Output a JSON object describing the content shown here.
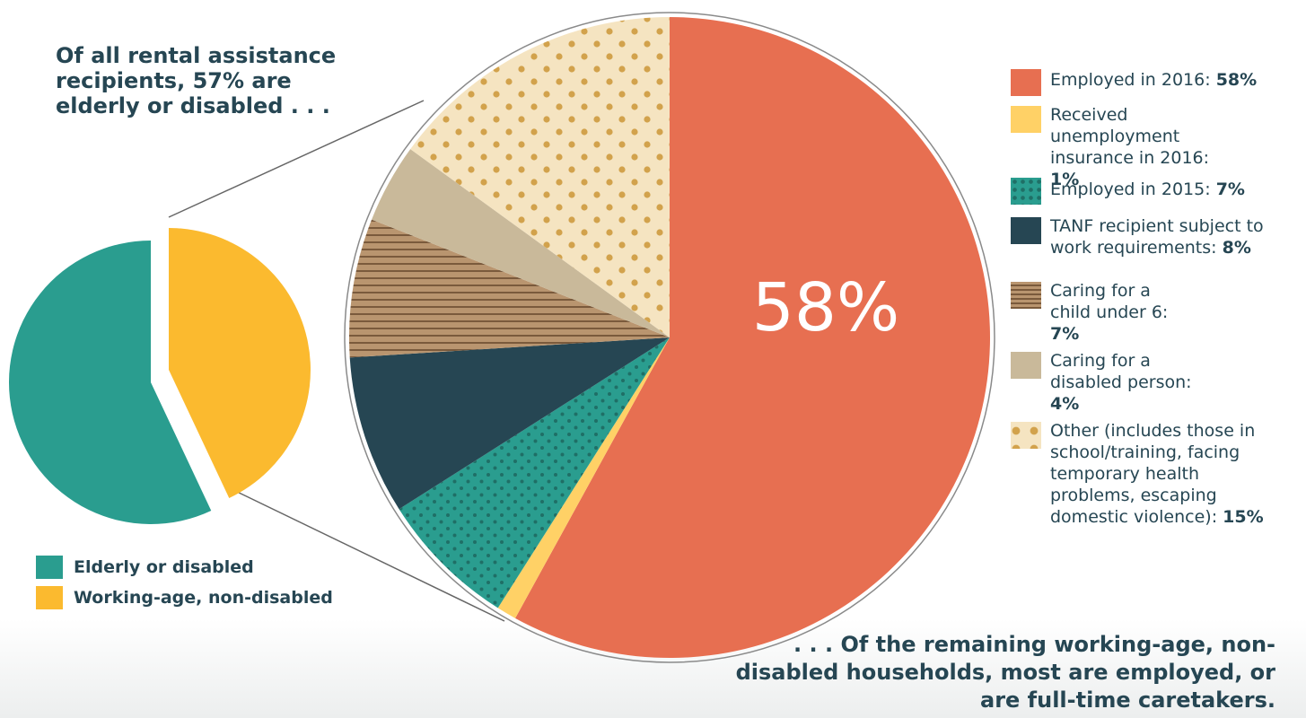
{
  "colors": {
    "elderly": "#2a9d8f",
    "working_age": "#fbba2f",
    "employed_2016": "#e76f51",
    "unemployment": "#ffd166",
    "employed_2015": "#2a9d8f",
    "tanf": "#264653",
    "child": "#b9956f",
    "disabled": "#c9b99a",
    "other": "#f5e4c1",
    "text": "#264653"
  },
  "chart_data": [
    {
      "type": "pie",
      "title": "",
      "slices": [
        {
          "label": "Elderly or disabled",
          "value": 57
        },
        {
          "label": "Working-age, non-disabled",
          "value": 43
        }
      ]
    },
    {
      "type": "pie",
      "title": "",
      "center_label": "58%",
      "slices": [
        {
          "label": "Employed in 2016:",
          "value": 58,
          "value_label": "58%"
        },
        {
          "label": "Received unemployment insurance in 2016:",
          "value": 1,
          "value_label": "1%"
        },
        {
          "label": "Employed in 2015:",
          "value": 7,
          "value_label": "7%"
        },
        {
          "label": "TANF recipient subject to work requirements:",
          "value": 8,
          "value_label": "8%"
        },
        {
          "label": "Caring for a child under 6:",
          "value": 7,
          "value_label": "7%"
        },
        {
          "label": "Caring for a disabled person:",
          "value": 4,
          "value_label": "4%"
        },
        {
          "label": "Other (includes those in school/training, facing temporary health problems, escaping domestic violence):",
          "value": 15,
          "value_label": "15%"
        }
      ]
    }
  ],
  "captions": {
    "left": "Of all rental assistance recipients, 57% are elderly or disabled . . .",
    "bottom": ". . . Of the remaining working-age, non-disabled households, most are employed, or are full-time caretakers."
  },
  "legend_left": [
    {
      "label": "Elderly or disabled"
    },
    {
      "label": "Working-age, non-disabled"
    }
  ]
}
